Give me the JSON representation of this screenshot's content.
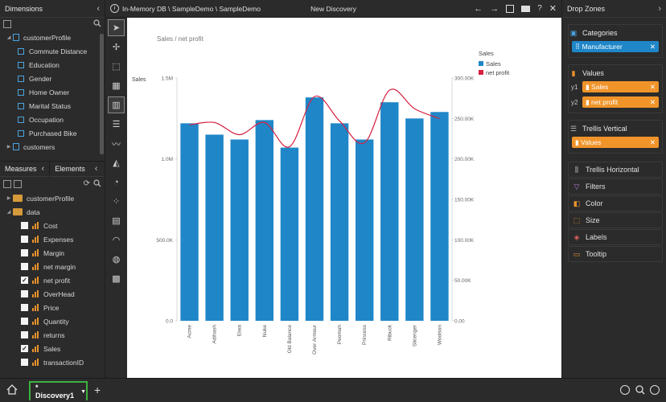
{
  "dimensions": {
    "title": "Dimensions",
    "items": [
      {
        "label": "customerProfile",
        "level": 0,
        "kind": "doc",
        "expanded": true
      },
      {
        "label": "Commute Distance",
        "level": 1,
        "kind": "attr"
      },
      {
        "label": "Education",
        "level": 1,
        "kind": "attr"
      },
      {
        "label": "Gender",
        "level": 1,
        "kind": "attr"
      },
      {
        "label": "Home Owner",
        "level": 1,
        "kind": "attr"
      },
      {
        "label": "Marital Status",
        "level": 1,
        "kind": "attr"
      },
      {
        "label": "Occupation",
        "level": 1,
        "kind": "attr"
      },
      {
        "label": "Purchased Bike",
        "level": 1,
        "kind": "attr"
      },
      {
        "label": "customers",
        "level": 0,
        "kind": "doc",
        "expanded": false
      }
    ]
  },
  "measures": {
    "tab_measures": "Measures",
    "tab_elements": "Elements",
    "folders": [
      {
        "label": "customerProfile",
        "expanded": false
      },
      {
        "label": "data",
        "expanded": true
      }
    ],
    "items": [
      {
        "label": "Cost",
        "checked": false
      },
      {
        "label": "Expenses",
        "checked": false
      },
      {
        "label": "Margin",
        "checked": false
      },
      {
        "label": "net margin",
        "checked": false
      },
      {
        "label": "net profit",
        "checked": true
      },
      {
        "label": "OverHead",
        "checked": false
      },
      {
        "label": "Price",
        "checked": false
      },
      {
        "label": "Quantity",
        "checked": false
      },
      {
        "label": "returns",
        "checked": false
      },
      {
        "label": "Sales",
        "checked": true
      },
      {
        "label": "transactionID",
        "checked": false
      }
    ]
  },
  "topbar": {
    "path": "In-Memory DB \\ SampleDemo \\ SampleDemo",
    "title": "New Discovery"
  },
  "toolbar": {
    "tools": [
      "pointer",
      "add-point",
      "select-area",
      "table",
      "column-chart",
      "bar-chart",
      "line-chart",
      "area-chart",
      "pie-chart",
      "scatter-chart",
      "treemap",
      "gauge",
      "map",
      "pivot"
    ]
  },
  "chart_data": {
    "type": "bar",
    "title": "Sales / net profit",
    "ylabel": "Sales",
    "categories": [
      "Acme",
      "Adihash",
      "Eiwa",
      "Nuke",
      "Old Balance",
      "Over Armour",
      "Peomah",
      "Princess",
      "Ribuck",
      "Slicenger",
      "Woolson"
    ],
    "series": [
      {
        "name": "Sales",
        "type": "bar",
        "axis": "y1",
        "color": "#1f86c8",
        "values": [
          1220000,
          1150000,
          1120000,
          1240000,
          1070000,
          1380000,
          1220000,
          1120000,
          1350000,
          1250000,
          1290000
        ]
      },
      {
        "name": "net profit",
        "type": "line",
        "axis": "y2",
        "color": "#d6203f",
        "values": [
          242000,
          245000,
          230000,
          245000,
          215000,
          277000,
          247000,
          220000,
          285000,
          262000,
          250000
        ]
      }
    ],
    "y1_ticks": [
      "0.0",
      "500.0K",
      "1.0M",
      "1.5M"
    ],
    "y1_lim": [
      0,
      1500000
    ],
    "y2_ticks": [
      "0.00",
      "50.00K",
      "100.00K",
      "150.00K",
      "200.00K",
      "250.00K",
      "300.00K"
    ],
    "y2_lim": [
      0,
      300000
    ],
    "legend": {
      "title": "Sales",
      "position": "top-right"
    },
    "grid": false
  },
  "dropzones": {
    "title": "Drop Zones",
    "categories": {
      "label": "Categories",
      "items": [
        "Manufacturer"
      ]
    },
    "values": {
      "label": "Values",
      "items": [
        {
          "axis": "y1",
          "label": "Sales"
        },
        {
          "axis": "y2",
          "label": "net profit"
        }
      ]
    },
    "trellis_vertical": {
      "label": "Trellis Vertical",
      "items": [
        "Values"
      ]
    },
    "trellis_horizontal": "Trellis Horizontal",
    "filters": "Filters",
    "color": "Color",
    "size": "Size",
    "labels": "Labels",
    "tooltip": "Tooltip"
  },
  "bottom": {
    "tab_label": "* Discovery1"
  },
  "colors": {
    "accent": "#1f86c8",
    "measure": "#f0942a",
    "tab_border": "#3fb03f"
  }
}
